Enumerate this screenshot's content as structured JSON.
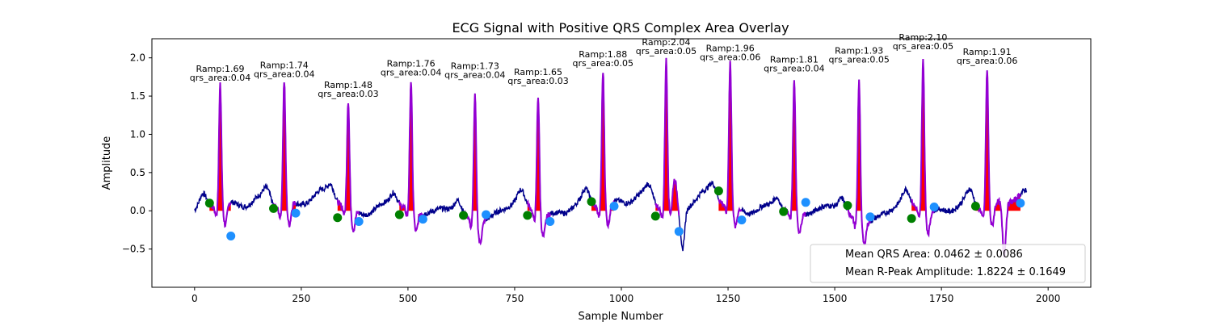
{
  "chart_data": {
    "type": "line",
    "title": "ECG Signal with Positive QRS Complex Area Overlay",
    "xlabel": "Sample Number",
    "ylabel": "Amplitude",
    "xlim": [
      -100,
      2100
    ],
    "ylim": [
      -1.0,
      2.25
    ],
    "x_ticks": [
      0,
      250,
      500,
      750,
      1000,
      1250,
      1500,
      1750,
      2000
    ],
    "y_ticks": [
      -0.5,
      0.0,
      0.5,
      1.0,
      1.5,
      2.0
    ],
    "grid": false,
    "legend_placement": "lower-right",
    "legend_entries": [
      "Mean QRS Area: 0.0462 ± 0.0086",
      "Mean R-Peak Amplitude: 1.8224 ± 0.1649"
    ],
    "colors": {
      "signal": "#00008b",
      "qrs": "#9400d3",
      "area": "#ff0000",
      "onset": "#008000",
      "offset": "#1e90ff"
    },
    "beats": [
      {
        "onset": 35,
        "onset_y": 0.1,
        "peak_x": 60,
        "r_amp": 1.69,
        "offset": 85,
        "offset_y": -0.33,
        "label_ramp": "Ramp:1.69",
        "label_area": "qrs_area:0.04"
      },
      {
        "onset": 185,
        "onset_y": 0.03,
        "peak_x": 210,
        "r_amp": 1.74,
        "offset": 237,
        "offset_y": -0.03,
        "label_ramp": "Ramp:1.74",
        "label_area": "qrs_area:0.04"
      },
      {
        "onset": 335,
        "onset_y": -0.09,
        "peak_x": 360,
        "r_amp": 1.48,
        "offset": 385,
        "offset_y": -0.14,
        "label_ramp": "Ramp:1.48",
        "label_area": "qrs_area:0.03"
      },
      {
        "onset": 480,
        "onset_y": -0.05,
        "peak_x": 507,
        "r_amp": 1.76,
        "offset": 535,
        "offset_y": -0.11,
        "label_ramp": "Ramp:1.76",
        "label_area": "qrs_area:0.04"
      },
      {
        "onset": 630,
        "onset_y": -0.06,
        "peak_x": 657,
        "r_amp": 1.73,
        "offset": 683,
        "offset_y": -0.05,
        "label_ramp": "Ramp:1.73",
        "label_area": "qrs_area:0.04"
      },
      {
        "onset": 780,
        "onset_y": -0.06,
        "peak_x": 805,
        "r_amp": 1.65,
        "offset": 833,
        "offset_y": -0.14,
        "label_ramp": "Ramp:1.65",
        "label_area": "qrs_area:0.03"
      },
      {
        "onset": 930,
        "onset_y": 0.12,
        "peak_x": 957,
        "r_amp": 1.88,
        "offset": 983,
        "offset_y": 0.06,
        "label_ramp": "Ramp:1.88",
        "label_area": "qrs_area:0.05"
      },
      {
        "onset": 1080,
        "onset_y": -0.07,
        "peak_x": 1105,
        "r_amp": 2.04,
        "offset": 1135,
        "offset_y": -0.27,
        "label_ramp": "Ramp:2.04",
        "label_area": "qrs_area:0.05"
      },
      {
        "onset": 1228,
        "onset_y": 0.26,
        "peak_x": 1255,
        "r_amp": 1.96,
        "offset": 1282,
        "offset_y": -0.12,
        "label_ramp": "Ramp:1.96",
        "label_area": "qrs_area:0.06"
      },
      {
        "onset": 1380,
        "onset_y": -0.01,
        "peak_x": 1405,
        "r_amp": 1.81,
        "offset": 1432,
        "offset_y": 0.11,
        "label_ramp": "Ramp:1.81",
        "label_area": "qrs_area:0.04"
      },
      {
        "onset": 1530,
        "onset_y": 0.07,
        "peak_x": 1557,
        "r_amp": 1.93,
        "offset": 1583,
        "offset_y": -0.08,
        "label_ramp": "Ramp:1.93",
        "label_area": "qrs_area:0.05"
      },
      {
        "onset": 1680,
        "onset_y": -0.1,
        "peak_x": 1707,
        "r_amp": 2.1,
        "offset": 1733,
        "offset_y": 0.05,
        "label_ramp": "Ramp:2.10",
        "label_area": "qrs_area:0.05"
      },
      {
        "onset": 1830,
        "onset_y": 0.06,
        "peak_x": 1857,
        "r_amp": 1.91,
        "offset": 1935,
        "offset_y": 0.1,
        "label_ramp": "Ramp:1.91",
        "label_area": "qrs_area:0.06"
      }
    ]
  }
}
